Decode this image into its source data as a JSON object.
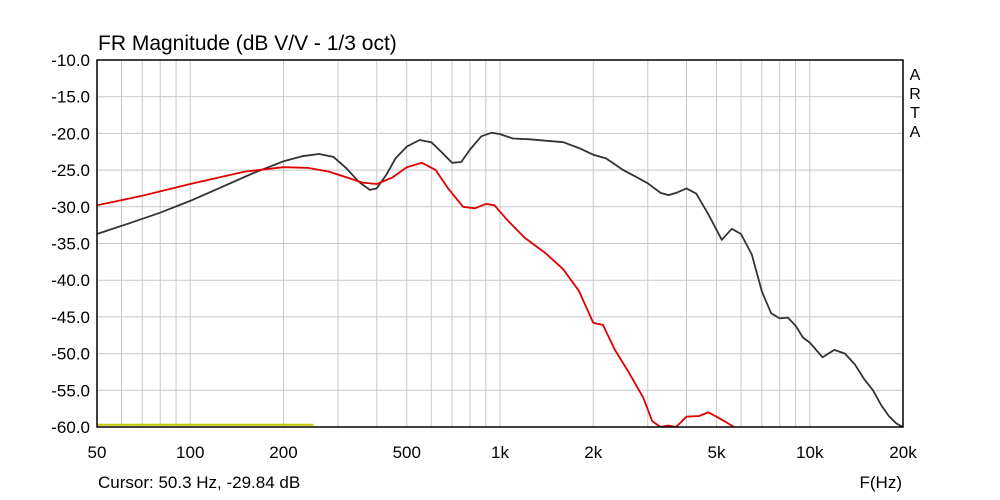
{
  "chart_data": {
    "type": "line",
    "title": "FR Magnitude (dB V/V - 1/3 oct)",
    "xlabel": "F(Hz)",
    "ylabel": "",
    "xscale": "log",
    "xlim": [
      50,
      20000
    ],
    "ylim": [
      -60,
      -10
    ],
    "grid": true,
    "x_ticks": [
      50,
      100,
      200,
      500,
      1000,
      2000,
      5000,
      10000,
      20000
    ],
    "x_tick_labels": [
      "50",
      "100",
      "200",
      "500",
      "1k",
      "2k",
      "5k",
      "10k",
      "20k"
    ],
    "y_ticks": [
      -10,
      -15,
      -20,
      -25,
      -30,
      -35,
      -40,
      -45,
      -50,
      -55,
      -60
    ],
    "y_tick_labels": [
      "-10.0",
      "-15.0",
      "-20.0",
      "-25.0",
      "-30.0",
      "-35.0",
      "-40.0",
      "-45.0",
      "-50.0",
      "-55.0",
      "-60.0"
    ],
    "brand_letters": [
      "A",
      "R",
      "T",
      "A"
    ],
    "cursor_text": "Cursor: 50.3 Hz, -29.84 dB",
    "colors": {
      "series_dark": "#333333",
      "series_red": "#e00000",
      "marker": "#c8c800",
      "grid": "#c8c8c8",
      "frame": "#000000"
    },
    "series": [
      {
        "color": "#333333",
        "points": [
          [
            50,
            -33.7
          ],
          [
            63,
            -32.3
          ],
          [
            80,
            -30.8
          ],
          [
            100,
            -29.2
          ],
          [
            125,
            -27.4
          ],
          [
            160,
            -25.4
          ],
          [
            200,
            -23.8
          ],
          [
            230,
            -23.1
          ],
          [
            260,
            -22.8
          ],
          [
            290,
            -23.2
          ],
          [
            320,
            -24.8
          ],
          [
            350,
            -26.6
          ],
          [
            380,
            -27.7
          ],
          [
            400,
            -27.5
          ],
          [
            430,
            -25.6
          ],
          [
            460,
            -23.4
          ],
          [
            500,
            -21.8
          ],
          [
            550,
            -20.9
          ],
          [
            600,
            -21.2
          ],
          [
            650,
            -22.6
          ],
          [
            700,
            -24.0
          ],
          [
            750,
            -23.9
          ],
          [
            800,
            -22.2
          ],
          [
            870,
            -20.4
          ],
          [
            940,
            -19.9
          ],
          [
            1000,
            -20.1
          ],
          [
            1100,
            -20.7
          ],
          [
            1250,
            -20.8
          ],
          [
            1400,
            -21.0
          ],
          [
            1600,
            -21.2
          ],
          [
            1800,
            -22.0
          ],
          [
            2000,
            -22.9
          ],
          [
            2200,
            -23.4
          ],
          [
            2500,
            -25.0
          ],
          [
            2800,
            -26.1
          ],
          [
            3000,
            -26.8
          ],
          [
            3300,
            -28.1
          ],
          [
            3500,
            -28.4
          ],
          [
            3700,
            -28.1
          ],
          [
            4000,
            -27.5
          ],
          [
            4300,
            -28.2
          ],
          [
            4700,
            -31.0
          ],
          [
            5200,
            -34.5
          ],
          [
            5600,
            -33.0
          ],
          [
            6000,
            -33.7
          ],
          [
            6500,
            -36.5
          ],
          [
            7000,
            -41.5
          ],
          [
            7500,
            -44.5
          ],
          [
            8000,
            -45.2
          ],
          [
            8500,
            -45.1
          ],
          [
            9000,
            -46.2
          ],
          [
            9500,
            -47.8
          ],
          [
            10000,
            -48.5
          ],
          [
            11000,
            -50.5
          ],
          [
            12000,
            -49.5
          ],
          [
            13000,
            -50.0
          ],
          [
            14000,
            -51.5
          ],
          [
            15000,
            -53.5
          ],
          [
            16000,
            -55.0
          ],
          [
            17000,
            -57.0
          ],
          [
            18000,
            -58.5
          ],
          [
            19000,
            -59.5
          ],
          [
            20000,
            -60
          ]
        ]
      },
      {
        "color": "#e00000",
        "points": [
          [
            50,
            -29.8
          ],
          [
            70,
            -28.5
          ],
          [
            100,
            -26.9
          ],
          [
            150,
            -25.2
          ],
          [
            200,
            -24.6
          ],
          [
            240,
            -24.7
          ],
          [
            280,
            -25.2
          ],
          [
            320,
            -26.0
          ],
          [
            360,
            -26.7
          ],
          [
            400,
            -26.9
          ],
          [
            450,
            -26.0
          ],
          [
            500,
            -24.6
          ],
          [
            560,
            -24.0
          ],
          [
            620,
            -25.0
          ],
          [
            680,
            -27.5
          ],
          [
            760,
            -30.0
          ],
          [
            830,
            -30.2
          ],
          [
            900,
            -29.6
          ],
          [
            960,
            -29.8
          ],
          [
            1050,
            -31.7
          ],
          [
            1200,
            -34.2
          ],
          [
            1400,
            -36.3
          ],
          [
            1600,
            -38.5
          ],
          [
            1800,
            -41.5
          ],
          [
            2000,
            -45.8
          ],
          [
            2150,
            -46.1
          ],
          [
            2350,
            -49.5
          ],
          [
            2600,
            -52.5
          ],
          [
            2900,
            -56.0
          ],
          [
            3100,
            -59.2
          ],
          [
            3300,
            -60.0
          ],
          [
            3500,
            -59.8
          ],
          [
            3700,
            -60.0
          ],
          [
            4000,
            -58.6
          ],
          [
            4400,
            -58.5
          ],
          [
            4700,
            -58.0
          ],
          [
            5000,
            -58.6
          ],
          [
            5400,
            -59.4
          ],
          [
            5700,
            -60.0
          ]
        ]
      }
    ],
    "marker": {
      "color": "#c8c800",
      "x": [
        50,
        250
      ],
      "y": -59.7
    }
  }
}
